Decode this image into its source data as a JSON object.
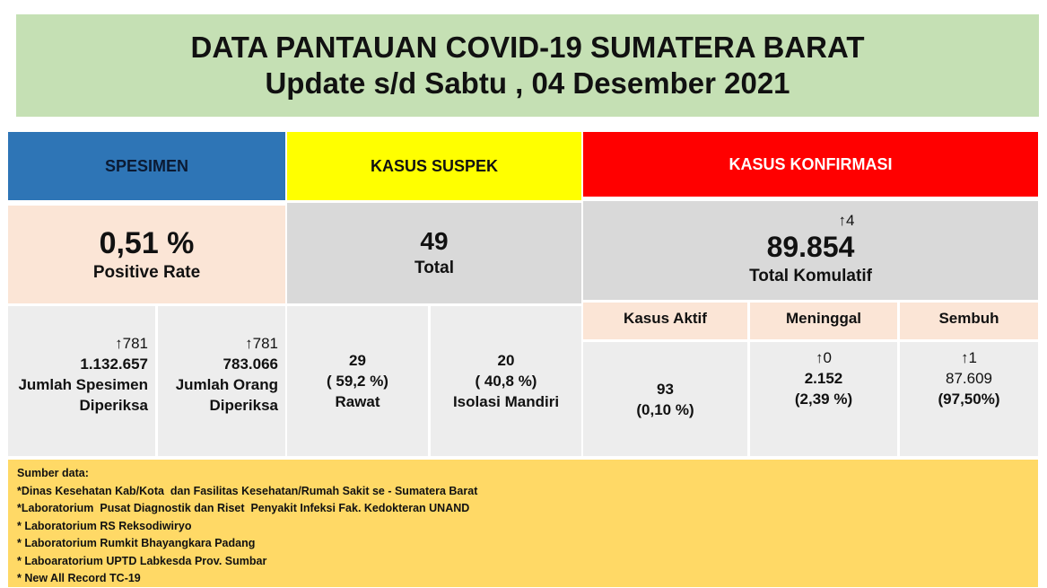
{
  "header": {
    "title": "DATA PANTAUAN COVID-19 SUMATERA BARAT",
    "subtitle": "Update s/d Sabtu , 04 Desember 2021"
  },
  "spesimen": {
    "heading": "SPESIMEN",
    "rate": "0,51 %",
    "rate_label": "Positive Rate",
    "items": [
      {
        "change": "↑781",
        "value": "1.132.657",
        "label": "Jumlah Spesimen Diperiksa"
      },
      {
        "change": "↑781",
        "value": "783.066",
        "label": "Jumlah Orang Diperiksa"
      }
    ]
  },
  "suspek": {
    "heading": "KASUS SUSPEK",
    "total": "49",
    "total_label": "Total",
    "items": [
      {
        "value": "29",
        "percent": "( 59,2 %)",
        "label": "Rawat"
      },
      {
        "value": "20",
        "percent": "( 40,8 %)",
        "label": "Isolasi Mandiri"
      }
    ]
  },
  "konfirmasi": {
    "heading": "KASUS KONFIRMASI",
    "change": "↑4",
    "total": "89.854",
    "total_label": "Total Komulatif",
    "columns": [
      {
        "label": "Kasus Aktif",
        "value": "93",
        "percent": "(0,10 %)"
      },
      {
        "label": "Meninggal",
        "change": "↑0",
        "value": "2.152",
        "percent": "(2,39 %)"
      },
      {
        "label": "Sembuh",
        "change": "↑1",
        "value": "87.609",
        "percent": "(97,50%)"
      }
    ]
  },
  "sources": {
    "title": "Sumber data:",
    "lines": [
      "*Dinas Kesehatan Kab/Kota  dan Fasilitas Kesehatan/Rumah Sakit se - Sumatera Barat",
      "*Laboratorium  Pusat Diagnostik dan Riset  Penyakit Infeksi Fak. Kedokteran UNAND",
      "* Laboratorium RS Reksodiwiryo",
      "* Laboratorium Rumkit Bhayangkara Padang",
      "* Laboaratorium UPTD Labkesda Prov. Sumbar",
      "* New All Record TC-19"
    ]
  }
}
